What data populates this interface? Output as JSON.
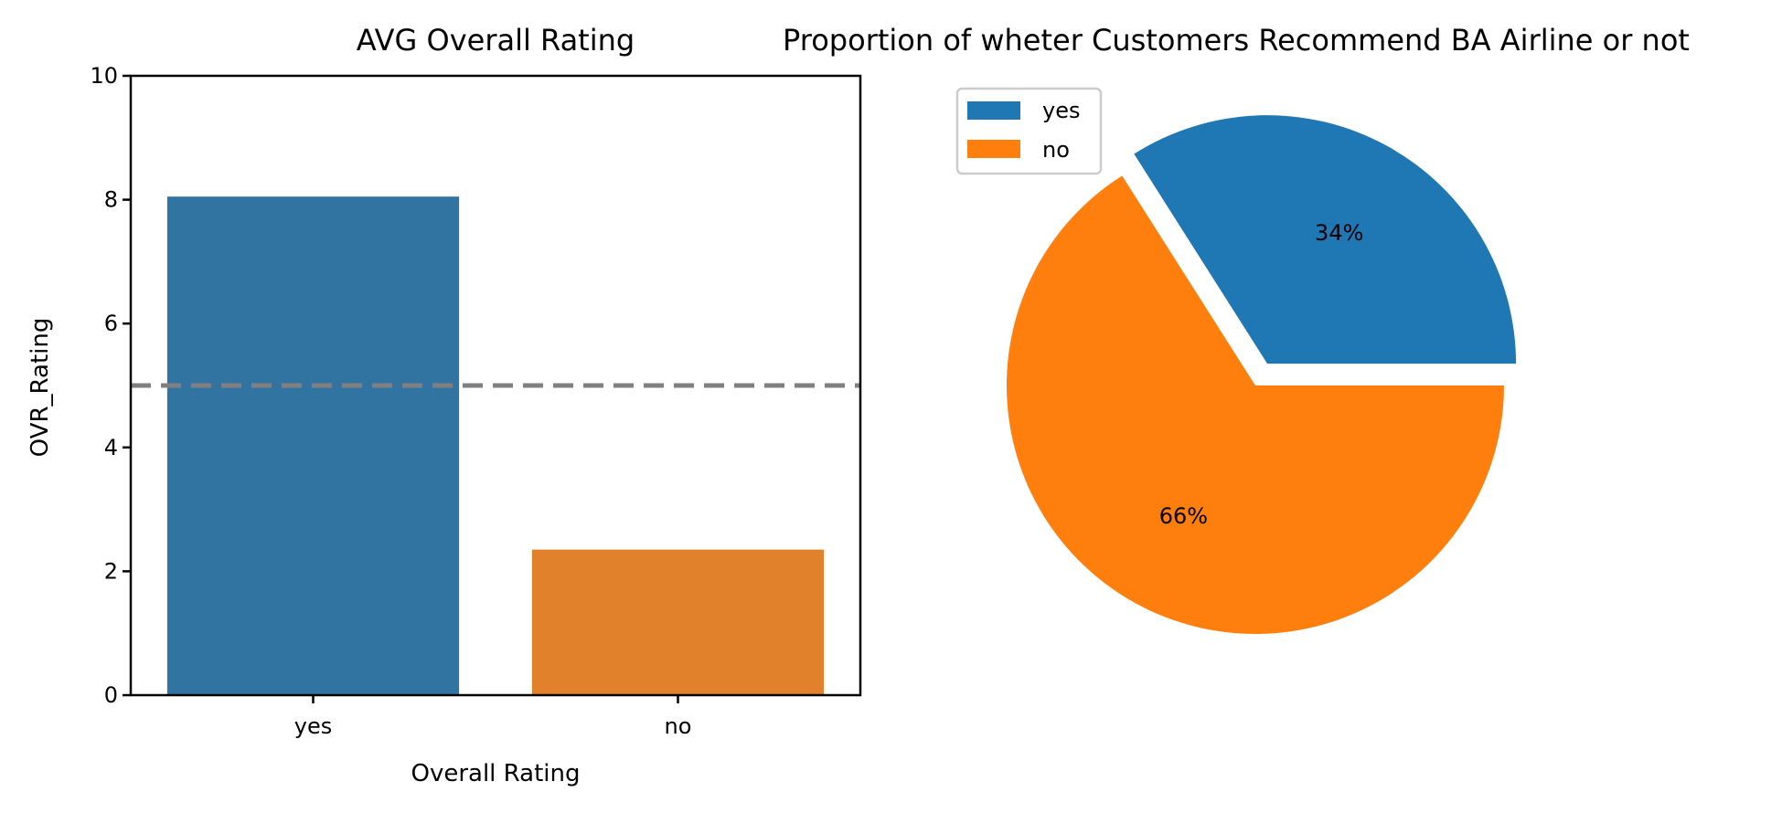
{
  "chart_data": [
    {
      "type": "bar",
      "title": "AVG Overall Rating",
      "xlabel": "Overall Rating",
      "ylabel": "OVR_Rating",
      "categories": [
        "yes",
        "no"
      ],
      "values": [
        8.05,
        2.35
      ],
      "ylim": [
        0,
        10
      ],
      "yticks": [
        "0",
        "2",
        "4",
        "6",
        "8",
        "10"
      ],
      "reference_line": {
        "y": 5,
        "style": "dashed",
        "color": "#808080"
      },
      "colors": [
        "#3274a1",
        "#e1812c"
      ],
      "grid": false
    },
    {
      "type": "pie",
      "title": "Proportion of wheter Customers Recommend BA Airline or not",
      "labels": [
        "yes",
        "no"
      ],
      "values": [
        34,
        66
      ],
      "pct_labels": [
        "34%",
        "66%"
      ],
      "colors": [
        "#1f77b4",
        "#ff7f0e"
      ],
      "exploded": "yes",
      "legend_position": "upper-left"
    }
  ]
}
